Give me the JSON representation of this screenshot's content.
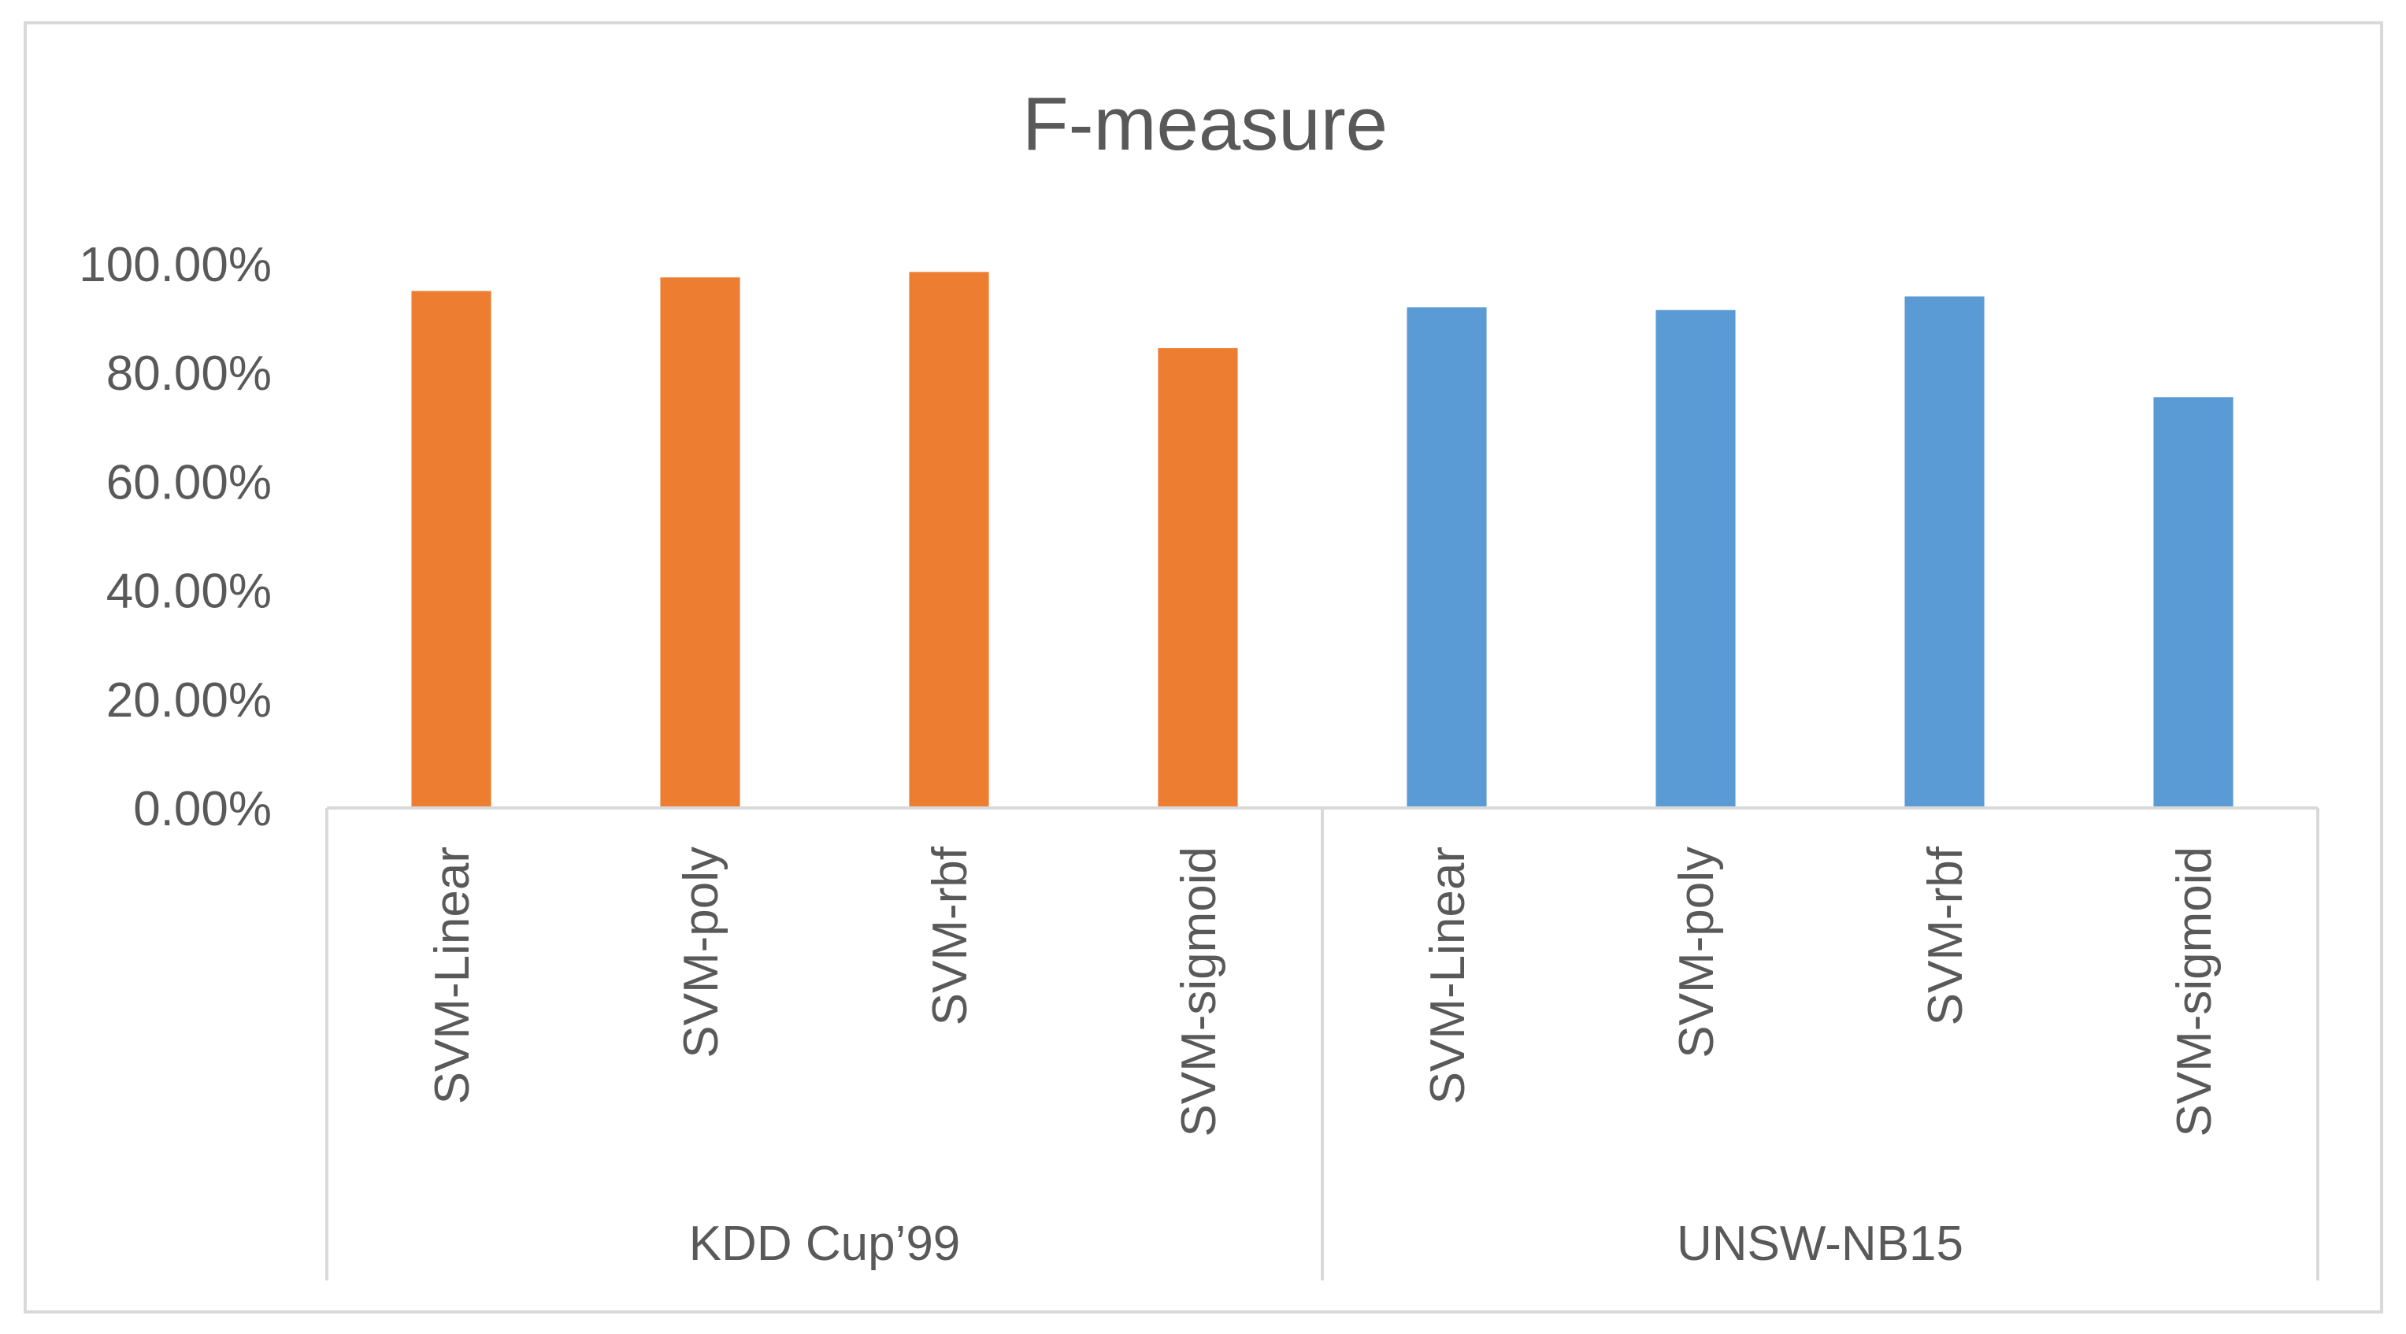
{
  "chart_data": {
    "type": "bar",
    "title": "F-measure",
    "xlabel": "",
    "ylabel": "",
    "ylim": [
      0,
      1
    ],
    "y_ticks": [
      "0.00%",
      "20.00%",
      "40.00%",
      "60.00%",
      "80.00%",
      "100.00%"
    ],
    "y_tick_values": [
      0,
      0.2,
      0.4,
      0.6,
      0.8,
      1.0
    ],
    "grid": false,
    "legend": "none",
    "groups": [
      {
        "label": "KDD Cup’99",
        "color": "#ED7D31",
        "categories": [
          "SVM-Linear",
          "SVM-poly",
          "SVM-rbf",
          "SVM-sigmoid"
        ],
        "values": [
          0.95,
          0.975,
          0.985,
          0.845
        ]
      },
      {
        "label": "UNSW-NB15",
        "color": "#5B9BD5",
        "categories": [
          "SVM-Linear",
          "SVM-poly",
          "SVM-rbf",
          "SVM-sigmoid"
        ],
        "values": [
          0.92,
          0.915,
          0.94,
          0.755
        ]
      }
    ]
  }
}
